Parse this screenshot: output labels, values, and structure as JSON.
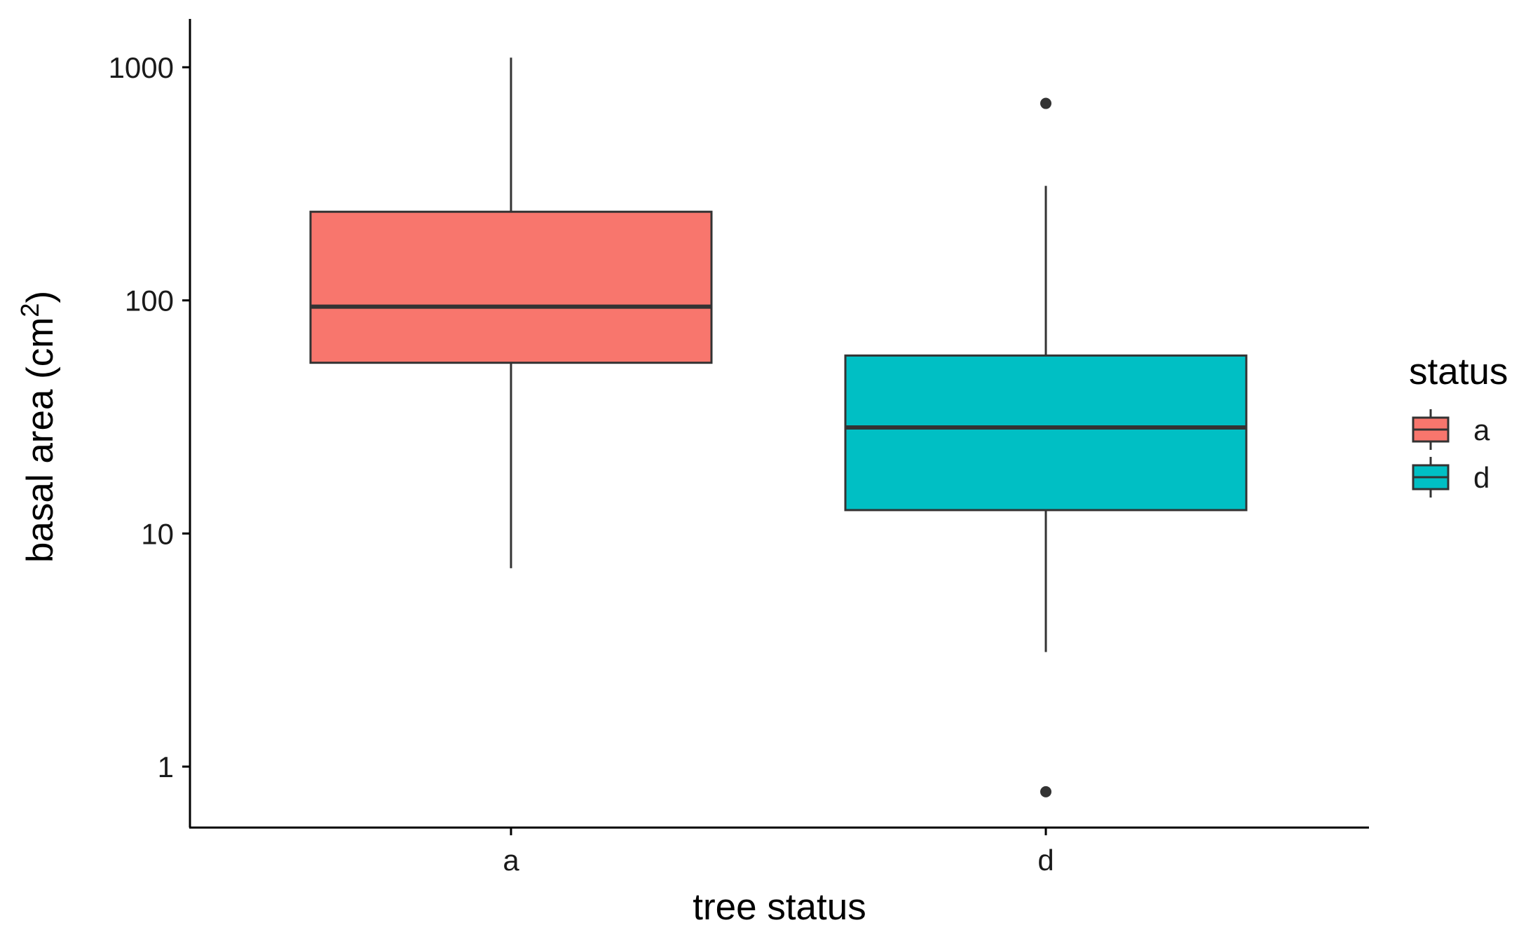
{
  "chart_data": {
    "type": "box",
    "ylabel": "basal area (cm",
    "ylabel_superscript": "2",
    "ylabel_suffix": ")",
    "xlabel": "tree status",
    "y_scale": "log10",
    "ylim": [
      0.55,
      1650
    ],
    "y_ticks": [
      1,
      10,
      100,
      1000
    ],
    "y_tick_labels": [
      "1",
      "10",
      "100",
      "1000"
    ],
    "categories": [
      "a",
      "d"
    ],
    "grid": false,
    "legend": {
      "title": "status",
      "position": "right",
      "items": [
        {
          "label": "a",
          "color": "#F8766D"
        },
        {
          "label": "d",
          "color": "#00BFC4"
        }
      ]
    },
    "boxes": [
      {
        "category": "a",
        "color": "#F8766D",
        "whisker_low": 7.1,
        "q1": 54,
        "median": 94,
        "q3": 240,
        "whisker_high": 1100,
        "outliers": []
      },
      {
        "category": "d",
        "color": "#00BFC4",
        "whisker_low": 3.1,
        "q1": 12.6,
        "median": 28.5,
        "q3": 58,
        "whisker_high": 310,
        "outliers": [
          700,
          0.78
        ]
      }
    ]
  }
}
